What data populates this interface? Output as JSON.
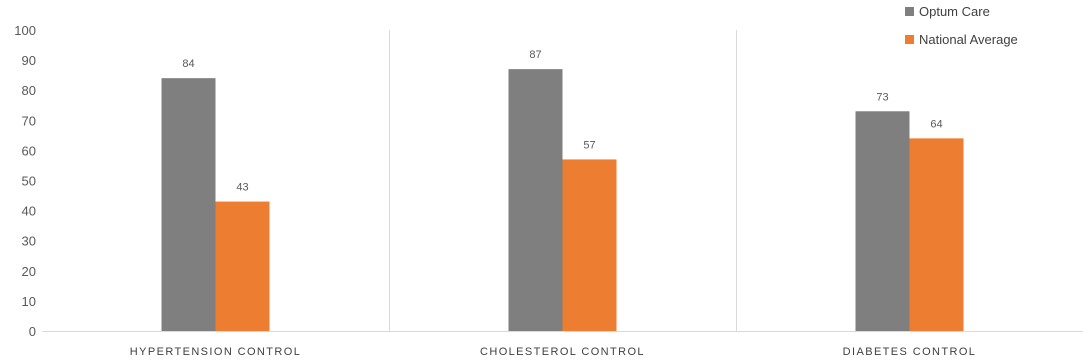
{
  "chart_data": {
    "type": "bar",
    "title": "",
    "xlabel": "",
    "ylabel": "",
    "categories": [
      "HYPERTENSION CONTROL",
      "CHOLESTEROL CONTROL",
      "DIABETES CONTROL"
    ],
    "series": [
      {
        "name": "Optum Care",
        "values": [
          84,
          87,
          73
        ],
        "color": "#7f7f7f"
      },
      {
        "name": "National Average",
        "values": [
          43,
          57,
          64
        ],
        "color": "#ed7d31"
      }
    ],
    "ylim": [
      0,
      100
    ],
    "yticks": [
      0,
      10,
      20,
      30,
      40,
      50,
      60,
      70,
      80,
      90,
      100
    ],
    "grid": false,
    "category_separators": true,
    "legend_position": "top-right",
    "data_labels": true
  }
}
